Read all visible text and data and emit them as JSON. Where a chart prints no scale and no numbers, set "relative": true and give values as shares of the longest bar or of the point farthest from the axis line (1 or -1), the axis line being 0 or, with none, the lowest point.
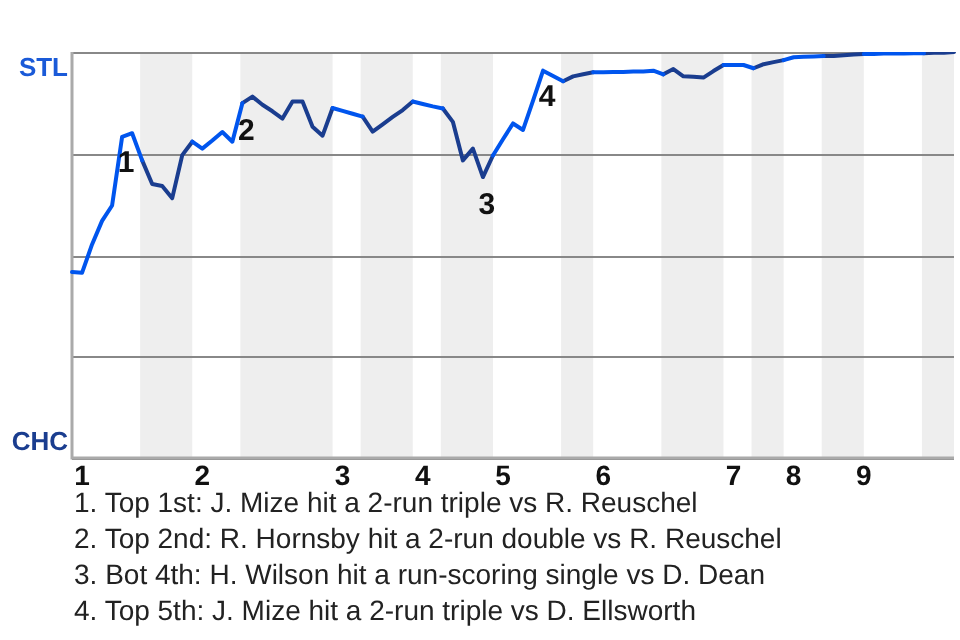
{
  "chart_data": {
    "type": "line",
    "relative": true,
    "categories": [
      null,
      "1",
      null,
      null,
      null,
      null,
      null,
      null,
      null,
      null,
      null,
      null,
      null,
      "2",
      null,
      null,
      null,
      null,
      null,
      null,
      null,
      null,
      null,
      null,
      null,
      null,
      null,
      "3",
      null,
      null,
      null,
      null,
      null,
      null,
      null,
      "4",
      null,
      null,
      null,
      null,
      null,
      null,
      null,
      "5",
      null,
      null,
      null,
      null,
      null,
      null,
      null,
      null,
      null,
      "6",
      null,
      null,
      null,
      null,
      null,
      null,
      null,
      null,
      null,
      null,
      null,
      null,
      "7",
      null,
      null,
      null,
      null,
      null,
      "8",
      null,
      null,
      null,
      null,
      null,
      null,
      "9",
      null,
      null,
      null,
      null,
      null,
      null,
      null,
      null,
      null
    ],
    "series": [
      {
        "color": "#0055ee",
        "values": [
          0.458,
          0.456,
          0.526,
          0.584,
          0.622,
          0.791,
          0.8,
          0.733,
          null,
          null,
          null,
          null,
          0.779,
          0.762,
          0.782,
          0.803,
          0.779,
          0.874,
          null,
          null,
          null,
          null,
          null,
          null,
          null,
          null,
          0.862,
          0.855,
          0.848,
          0.841,
          null,
          null,
          null,
          null,
          0.878,
          0.872,
          0.866,
          0.861,
          null,
          null,
          null,
          null,
          0.745,
          0.785,
          0.824,
          0.808,
          0.88,
          0.954,
          0.941,
          0.928,
          null,
          null,
          0.95,
          0.95,
          0.951,
          0.951,
          0.952,
          0.952,
          0.954,
          0.945,
          null,
          null,
          null,
          null,
          null,
          0.968,
          0.968,
          0.968,
          0.96,
          null,
          null,
          0.98,
          0.987,
          0.988,
          0.989,
          0.99,
          null,
          null,
          null,
          0.995,
          0.995,
          0.996,
          0.996,
          0.996,
          0.997,
          0.997,
          null,
          null,
          null
        ]
      },
      {
        "color": "#1a3d8f",
        "values": [
          null,
          null,
          null,
          null,
          null,
          null,
          null,
          0.733,
          0.675,
          0.67,
          0.64,
          0.746,
          0.779,
          null,
          null,
          null,
          null,
          0.874,
          0.89,
          0.87,
          0.854,
          0.836,
          0.878,
          0.878,
          0.816,
          0.794,
          0.862,
          null,
          null,
          0.841,
          0.804,
          0.822,
          0.84,
          0.857,
          0.878,
          null,
          null,
          0.861,
          0.828,
          0.733,
          0.762,
          0.692,
          0.745,
          null,
          null,
          null,
          null,
          null,
          null,
          0.928,
          0.94,
          0.945,
          0.95,
          null,
          null,
          null,
          null,
          null,
          null,
          0.945,
          0.958,
          0.94,
          0.939,
          0.937,
          0.953,
          0.968,
          null,
          null,
          0.96,
          0.97,
          0.975,
          0.98,
          null,
          null,
          null,
          0.99,
          0.99,
          0.992,
          0.994,
          0.995,
          null,
          null,
          null,
          null,
          null,
          0.997,
          0.998,
          0.998,
          1
        ]
      }
    ],
    "grid": "y",
    "marker": "none",
    "legend": false,
    "annotations": [
      "STL",
      "CHC",
      "1",
      "2",
      "3",
      "4",
      "1. Top 1st: J. Mize hit a 2-run triple vs R. Reuschel",
      "2. Top 2nd: R. Hornsby hit a 2-run double vs R. Reuschel",
      "3. Bot 4th: H. Wilson hit a run-scoring single vs D. Dean",
      "4. Top 5th: J. Mize hit a 2-run triple vs D. Ellsworth"
    ]
  }
}
